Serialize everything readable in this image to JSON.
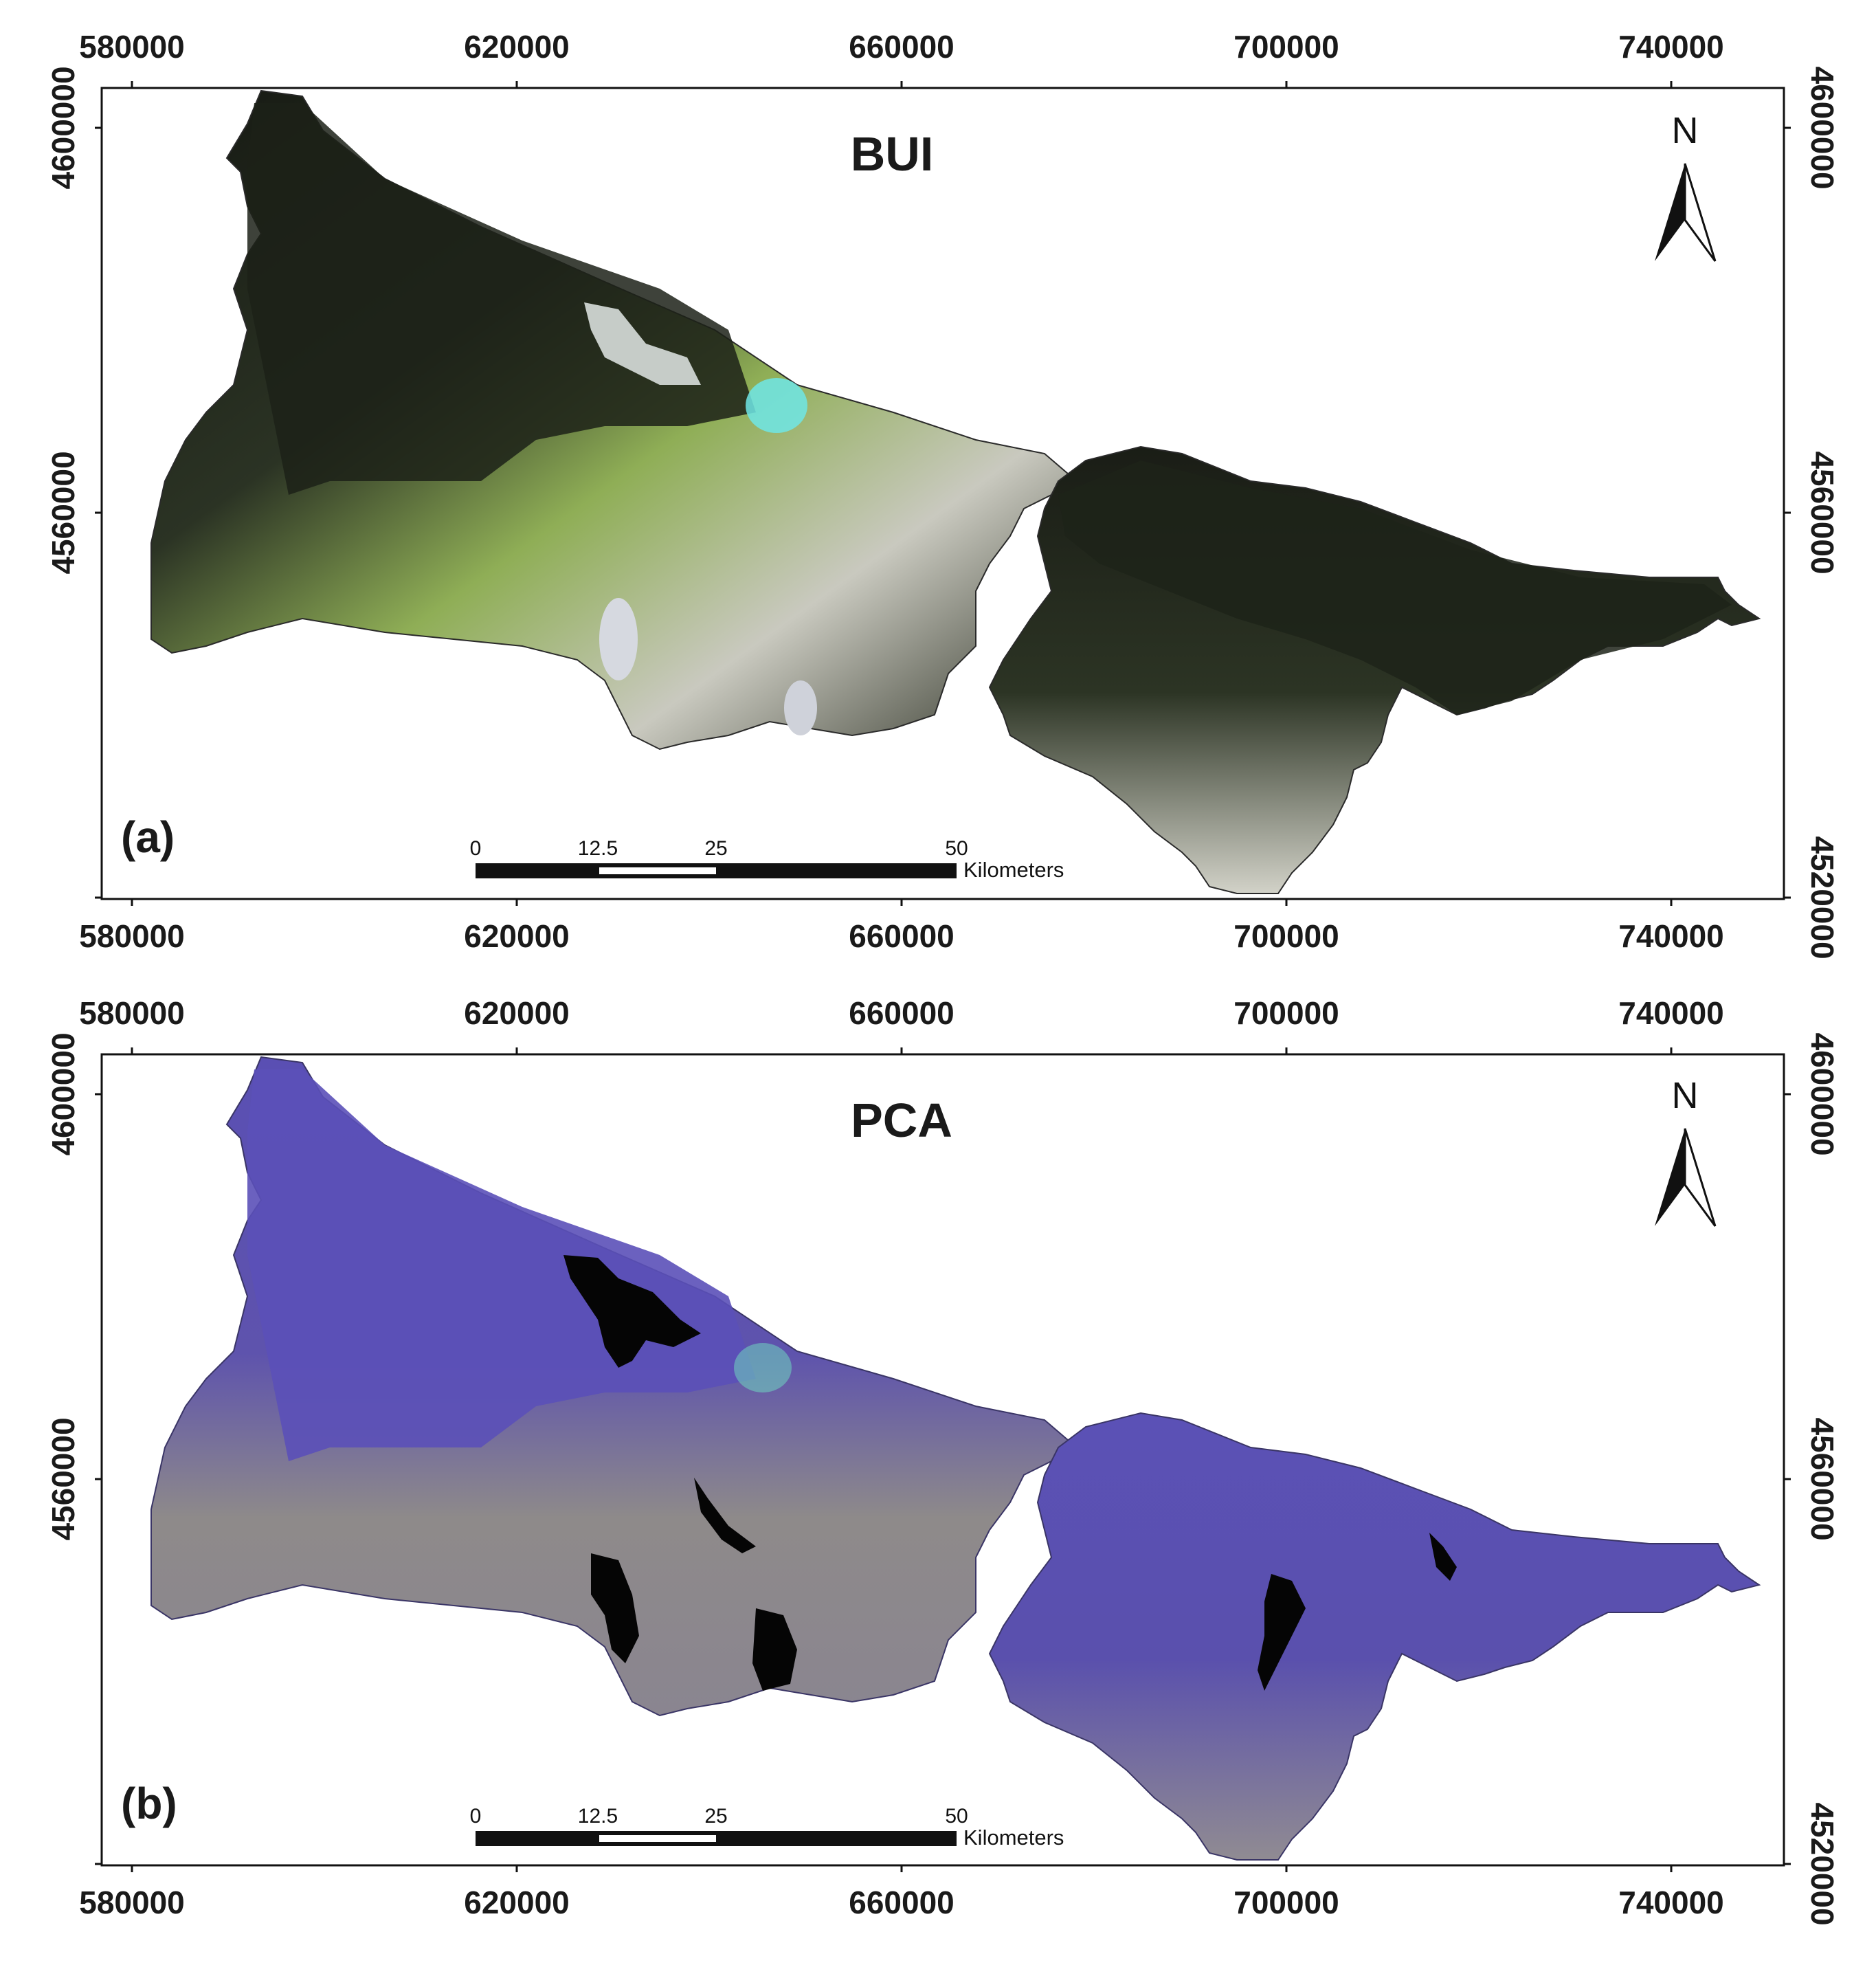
{
  "panels": [
    {
      "id": "a",
      "title": "BUI",
      "label": "(a)",
      "palette": {
        "fill": "#2d3a24",
        "fill2": "#a8c06a",
        "fill3": "#cfcfc2",
        "accent": "#6ee6e6"
      },
      "x_ticks": [
        "580000",
        "620000",
        "660000",
        "700000",
        "740000"
      ],
      "y_ticks": [
        "4600000",
        "4560000",
        "4520000"
      ]
    },
    {
      "id": "b",
      "title": "PCA",
      "label": "(b)",
      "palette": {
        "fill": "#5a4fb0",
        "fill2": "#9a9a82",
        "fill3": "#8f8a96",
        "accent": "#000000"
      },
      "x_ticks": [
        "580000",
        "620000",
        "660000",
        "700000",
        "740000"
      ],
      "y_ticks": [
        "4600000",
        "4560000",
        "4520000"
      ]
    }
  ],
  "north_arrow": {
    "letter": "N"
  },
  "scale_bar": {
    "labels": [
      "0",
      "12.5",
      "25",
      "50"
    ],
    "unit": "Kilometers"
  }
}
